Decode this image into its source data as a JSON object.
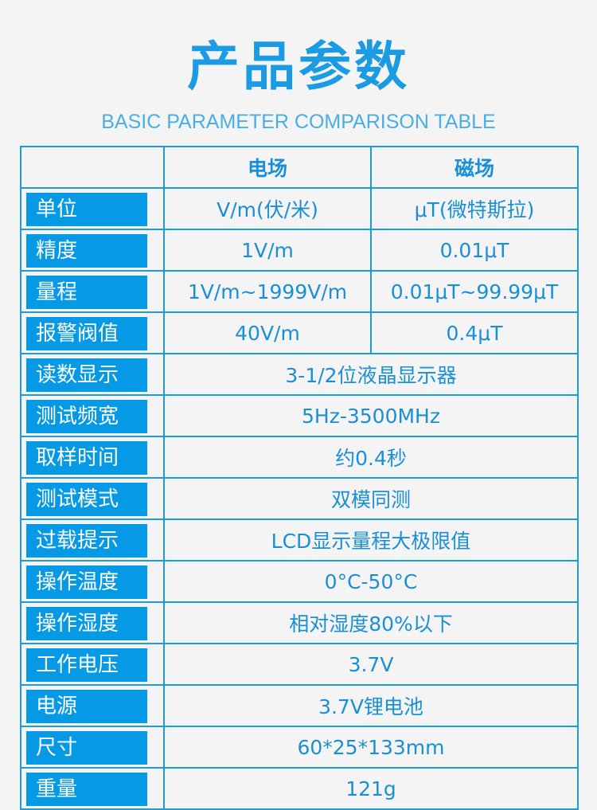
{
  "title": "产品参数",
  "subtitle": "BASIC PARAMETER COMPARISON TABLE",
  "colors": {
    "accent": "#1a9be3",
    "label_fill": "#069ae6",
    "background": "#f4f4f4"
  },
  "table": {
    "headers": [
      "",
      "电场",
      "磁场"
    ],
    "rows": [
      {
        "label": "单位",
        "values": [
          "V/m(伏/米)",
          "μT(微特斯拉)"
        ]
      },
      {
        "label": "精度",
        "values": [
          "1V/m",
          "0.01μT"
        ]
      },
      {
        "label": "量程",
        "values": [
          "1V/m~1999V/m",
          "0.01μT~99.99μT"
        ]
      },
      {
        "label": "报警阀值",
        "values": [
          "40V/m",
          "0.4μT"
        ]
      },
      {
        "label": "读数显示",
        "values": [
          "3-1/2位液晶显示器"
        ]
      },
      {
        "label": "测试频宽",
        "values": [
          "5Hz-3500MHz"
        ]
      },
      {
        "label": "取样时间",
        "values": [
          "约0.4秒"
        ]
      },
      {
        "label": "测试模式",
        "values": [
          "双模同测"
        ]
      },
      {
        "label": "过载提示",
        "values": [
          "LCD显示量程大极限值"
        ]
      },
      {
        "label": "操作温度",
        "values": [
          "0°C-50°C"
        ]
      },
      {
        "label": "操作湿度",
        "values": [
          "相对湿度80%以下"
        ]
      },
      {
        "label": "工作电压",
        "values": [
          "3.7V"
        ]
      },
      {
        "label": "电源",
        "values": [
          "3.7V锂电池"
        ]
      },
      {
        "label": "尺寸",
        "values": [
          "60*25*133mm"
        ]
      },
      {
        "label": "重量",
        "values": [
          "121g"
        ]
      }
    ]
  }
}
